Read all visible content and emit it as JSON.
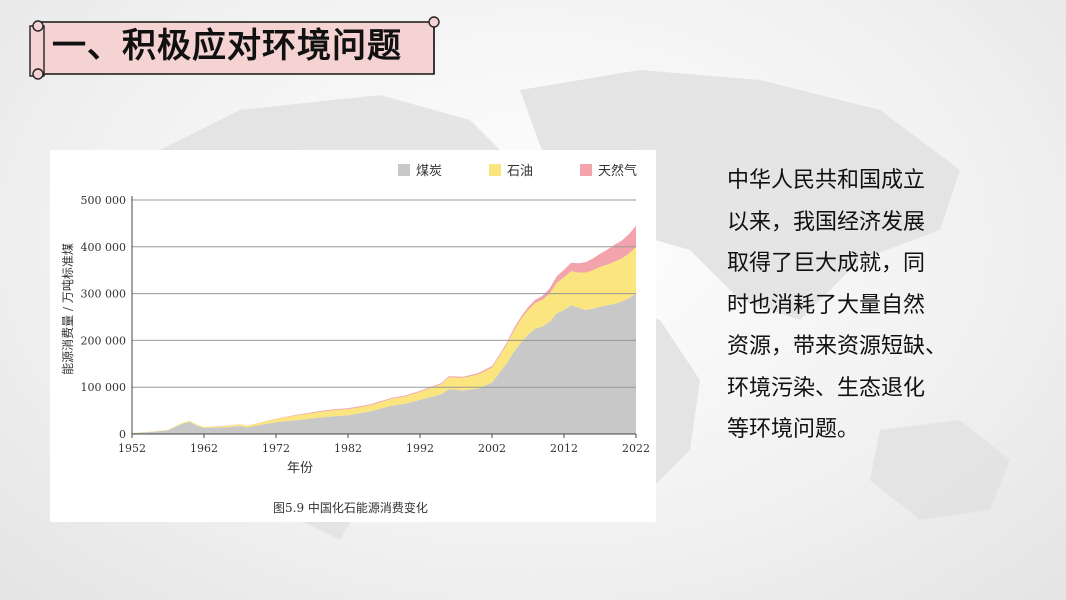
{
  "slide": {
    "title": "一、积极应对环境问题",
    "body_lines": [
      "中华人民共和国成立",
      "以来，我国经济发展",
      "取得了巨大成就，同",
      "时也消耗了大量自然",
      "资源，带来资源短缺、",
      "环境污染、生态退化",
      "等环境问题。"
    ]
  },
  "chart_data": {
    "type": "area",
    "stacked": true,
    "caption": "图5.9   中国化石能源消费变化",
    "xlabel": "年份",
    "ylabel": "能源消费量 / 万吨标准煤",
    "xlim": [
      1952,
      2022
    ],
    "ylim": [
      0,
      500000
    ],
    "xticks": [
      1952,
      1962,
      1972,
      1982,
      1992,
      2002,
      2012,
      2022
    ],
    "xtick_labels": [
      "1952",
      "1962",
      "1972",
      "1982",
      "1992",
      "2002",
      "2012",
      "2022"
    ],
    "yticks": [
      0,
      100000,
      200000,
      300000,
      400000,
      500000
    ],
    "ytick_labels": [
      "0",
      "100 000",
      "200 000",
      "300 000",
      "400 000",
      "500 000"
    ],
    "grid": "horizontal",
    "legend_position": "top-right",
    "colors": {
      "coal": "#c8c8c8",
      "oil": "#fbe57e",
      "gas": "#f2a3ac",
      "grid": "#999999",
      "axis": "#444444"
    },
    "x": [
      1952,
      1955,
      1957,
      1958,
      1959,
      1960,
      1961,
      1962,
      1965,
      1967,
      1968,
      1970,
      1972,
      1975,
      1978,
      1980,
      1982,
      1985,
      1988,
      1990,
      1992,
      1995,
      1996,
      1998,
      2000,
      2002,
      2003,
      2004,
      2005,
      2006,
      2007,
      2008,
      2009,
      2010,
      2011,
      2012,
      2013,
      2014,
      2015,
      2016,
      2017,
      2018,
      2019,
      2020,
      2021,
      2022
    ],
    "series": [
      {
        "name": "煤炭",
        "key": "coal",
        "values": [
          2000,
          5000,
          8000,
          15000,
          22000,
          26000,
          18000,
          13000,
          14000,
          17000,
          14000,
          20000,
          25000,
          30000,
          35000,
          38000,
          40000,
          48000,
          60000,
          65000,
          73000,
          85000,
          96000,
          93000,
          97000,
          110000,
          130000,
          150000,
          175000,
          195000,
          212000,
          225000,
          230000,
          240000,
          258000,
          265000,
          275000,
          270000,
          265000,
          268000,
          272000,
          275000,
          278000,
          283000,
          290000,
          300000
        ]
      },
      {
        "name": "石油",
        "key": "oil",
        "values": [
          300,
          500,
          1000,
          1500,
          2000,
          2500,
          2000,
          2000,
          3000,
          3500,
          3500,
          5000,
          7000,
          10000,
          12000,
          13000,
          13000,
          13000,
          15000,
          15500,
          17000,
          22000,
          25000,
          27000,
          30000,
          32000,
          35000,
          40000,
          45000,
          50000,
          53000,
          55000,
          57000,
          60000,
          65000,
          70000,
          73000,
          75000,
          80000,
          82000,
          85000,
          87000,
          90000,
          92000,
          95000,
          100000
        ]
      },
      {
        "name": "天然气",
        "key": "gas",
        "values": [
          0,
          0,
          0,
          0,
          0,
          0,
          0,
          0,
          500,
          500,
          500,
          500,
          1000,
          1500,
          2000,
          2000,
          2000,
          2000,
          2000,
          2000,
          2000,
          2000,
          2500,
          2500,
          3000,
          3000,
          3500,
          4000,
          4500,
          5000,
          6000,
          7000,
          8000,
          11000,
          14000,
          16000,
          18000,
          20000,
          22000,
          25000,
          28000,
          32000,
          36000,
          38000,
          42000,
          45000
        ]
      }
    ]
  }
}
